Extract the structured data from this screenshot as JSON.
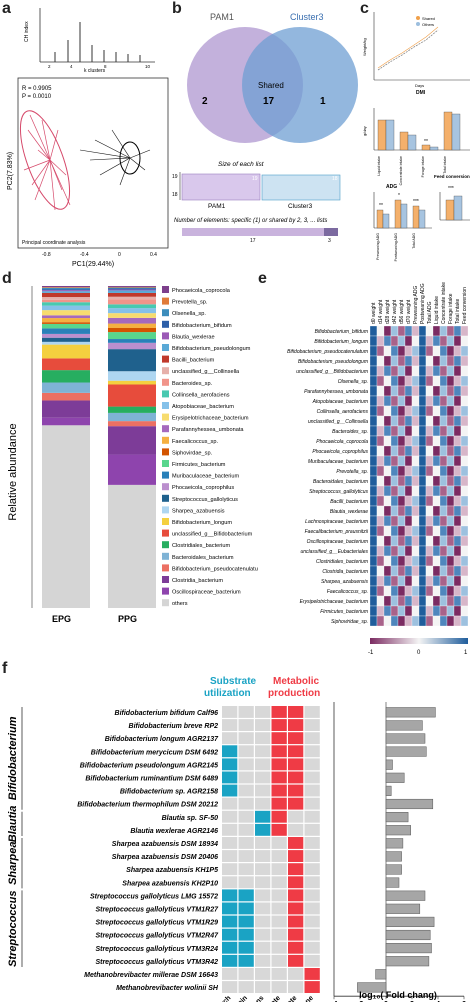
{
  "panels": {
    "a": "a",
    "b": "b",
    "c": "c",
    "d": "d",
    "e": "e",
    "f": "f"
  },
  "panel_a": {
    "inset_ylabel": "CH index",
    "inset_xlabel": "k clusters",
    "inset_ticks": [
      "2",
      "4",
      "6",
      "8",
      "10"
    ],
    "stats": [
      "R = 0.9905",
      "P = 0.0010"
    ],
    "xlabel": "PC1(29.44%)",
    "ylabel": "PC2(7.83%)",
    "xticks": [
      "-0.8",
      "-0.4",
      "0",
      "0.4"
    ],
    "footer": "Principal coordinate analysis"
  },
  "panel_b": {
    "set1": "PAM1",
    "set2": "Cluster3",
    "left_only": "2",
    "shared_label": "Shared",
    "shared": "17",
    "right_only": "1",
    "size_title": "Size of each list",
    "size_axis": [
      "19",
      "18"
    ],
    "size_bar1_value": "19",
    "size_bar2_value": "18",
    "elements_title": "Number of elements: specific (1) or shared by 2, 3, ... lists",
    "elements_values": [
      "17",
      "3"
    ]
  },
  "panel_c": {
    "legend": [
      "Shared",
      "Others"
    ],
    "line_ylabel": "Weight/kg",
    "line_xlabel": "Days",
    "line_sub": "DMI",
    "bar1_categories": [
      "Liquid intake",
      "Concentrate intake",
      "Forage intake",
      "Total intake"
    ],
    "bar1_ylabel": "g/day",
    "bar1_sig": "**",
    "adg_title": "ADG",
    "adg_categories": [
      "Preweaning ADG",
      "Postweaning ADG",
      "Total ADG"
    ],
    "adg_sig": [
      "**",
      "*",
      "***"
    ],
    "feed_title": "Feed conversion",
    "feed_sig": "***"
  },
  "panel_d": {
    "ylabel": "Relative abundance",
    "categories": [
      "EPG",
      "PPG"
    ],
    "legend": [
      "Phocaeicola_coprocola",
      "Prevotella_sp.",
      "Olsenella_sp.",
      "Bifidobacterium_bifidum",
      "Blautia_wexlerae",
      "Bifidobacterium_pseudolongum",
      "Bacilli_bacterium",
      "unclassified_g__Collinsella",
      "Bacteroides_sp.",
      "Collinsella_aerofaciens",
      "Atopobiaceae_bacterium",
      "Erysipelotrichaceae_bacterium",
      "Parafannyhessea_umbonata",
      "Faecalicoccus_sp.",
      "Siphovirdae_sp.",
      "Firmicutes_bacterium",
      "Muribaculaceae_bacterium",
      "Phocaeicola_coprophilus",
      "Streptococcus_gallolyticus",
      "Sharpea_azabuensis",
      "Bifidobacterium_longum",
      "unclassified_g__Bifidobacterium",
      "Clostridiales_bacterium",
      "Bacteroidales_bacterium",
      "Bifidobacterium_pseudocatenulatum",
      "Clostridia_bacterium",
      "Oscillospiraceae_bacterium",
      "others"
    ],
    "colors": [
      "#7d3f8c",
      "#e07b39",
      "#3c8dbc",
      "#2c5fa8",
      "#9b59b6",
      "#5aa9d6",
      "#c0392b",
      "#e6b0aa",
      "#f1948a",
      "#48c9b0",
      "#85c1e9",
      "#f7dc6f",
      "#a569bd",
      "#f5b041",
      "#d35400",
      "#58d68d",
      "#2980b9",
      "#bb8fce",
      "#1f618d",
      "#aed6f1",
      "#f4d03f",
      "#e74c3c",
      "#27ae60",
      "#7fb3d5",
      "#ec7063",
      "#7d3c98",
      "#8e44ad",
      "#d5d5d5"
    ]
  },
  "panel_e": {
    "col_labels": [
      "d0 weight",
      "d14 weight",
      "d28 weight",
      "d42 weight",
      "d56 weight",
      "d70 weight",
      "Preweaning ADG",
      "Postweaning ADG",
      "Total ADG",
      "Liquid intake",
      "Concentrate intake",
      "Forage intake",
      "Total intake",
      "Feed conversion"
    ],
    "row_labels": [
      "Bifidobacterium_bifidum",
      "Bifidobacterium_longum",
      "Bifidobacterium_pseudocatenulatum",
      "Bifidobacterium_pseudolongum",
      "unclassified_g__Bifidobacterium",
      "Olsenella_sp.",
      "Parafannyhessea_umbonata",
      "Atopobiaceae_bacterium",
      "Collinsella_aerofaciens",
      "unclassified_g__Collinsella",
      "Bacteroides_sp.",
      "Phocaeicola_coprocola",
      "Phocaeicola_coprophilus",
      "Muribaculaceae_bacterium",
      "Prevotella_sp.",
      "Bacteroidales_bacterium",
      "Streptococcus_gallolyticus",
      "Bacilli_bacterium",
      "Blautia_wexlerae",
      "Lachnospiraceae_bacterium",
      "Faecalibacterium_prausnitzii",
      "Oscillospiraceae_bacterium",
      "unclassified_g__Eubacteriales",
      "Clostridiales_bacterium",
      "Clostridia_bacterium",
      "Sharpea_azabuensis",
      "Faecalicoccus_sp.",
      "Erysipelotrichaceae_bacterium",
      "Firmicutes_bacterium",
      "Siphoviridae_sp."
    ],
    "scale": [
      "-1",
      "0",
      "1"
    ]
  },
  "panel_f": {
    "header_substrate": "Substrate utilization",
    "header_metabolic": "Metabolic production",
    "groups": [
      "Bifidobacterium",
      "Blautia",
      "Sharpea",
      "Streptococcus"
    ],
    "strains": [
      "Bifidobacterium bifidum Calf96",
      "Bifidobacterium breve RP2",
      "Bifidobacterium longum AGR2137",
      "Bifidobacterium merycicum DSM 6492",
      "Bifidobacterium pseudolongum AGR2145",
      "Bifidobacterium ruminantium DSM 6489",
      "Bifidobacterium sp. AGR2158",
      "Bifidobacterium thermophilum DSM 20212",
      "Blautia sp. SF-50",
      "Blautia wexlerae AGR2146",
      "Sharpea azabuensis DSM 18934",
      "Sharpea azabuensis DSM 20406",
      "Sharpea azabuensis KH1P5",
      "Sharpea azabuensis KH2P10",
      "Streptococcus gallolyticus LMG 15572",
      "Streptococcus gallolyticus VTM1R27",
      "Streptococcus gallolyticus VTM1R29",
      "Streptococcus gallolyticus VTM2R47",
      "Streptococcus gallolyticus VTM3R24",
      "Streptococcus gallolyticus VTM3R42",
      "Methanobrevibacter millerae DSM 16643",
      "Methanobrevibacter wolinii SH"
    ],
    "columns": [
      "Starch",
      "Protein",
      "Acetogens",
      "Acetate",
      "Lactate",
      "Methane"
    ],
    "matrix": [
      [
        0,
        0,
        0,
        1,
        1,
        0
      ],
      [
        0,
        0,
        0,
        1,
        1,
        0
      ],
      [
        0,
        0,
        0,
        1,
        1,
        0
      ],
      [
        1,
        0,
        0,
        1,
        1,
        0
      ],
      [
        1,
        0,
        0,
        1,
        1,
        0
      ],
      [
        1,
        0,
        0,
        1,
        1,
        0
      ],
      [
        1,
        0,
        0,
        1,
        1,
        0
      ],
      [
        0,
        0,
        0,
        1,
        1,
        0
      ],
      [
        0,
        0,
        1,
        1,
        0,
        0
      ],
      [
        0,
        0,
        1,
        1,
        0,
        0
      ],
      [
        0,
        0,
        0,
        0,
        1,
        0
      ],
      [
        0,
        0,
        0,
        0,
        1,
        0
      ],
      [
        0,
        0,
        0,
        0,
        1,
        0
      ],
      [
        0,
        0,
        0,
        0,
        1,
        0
      ],
      [
        1,
        1,
        0,
        0,
        1,
        0
      ],
      [
        1,
        1,
        0,
        0,
        1,
        0
      ],
      [
        1,
        1,
        0,
        0,
        1,
        0
      ],
      [
        1,
        1,
        0,
        0,
        1,
        0
      ],
      [
        1,
        1,
        0,
        0,
        1,
        0
      ],
      [
        1,
        1,
        0,
        0,
        1,
        0
      ],
      [
        0,
        0,
        0,
        0,
        0,
        1
      ],
      [
        0,
        0,
        0,
        0,
        0,
        1
      ]
    ],
    "fold_values": [
      3.8,
      2.8,
      3.0,
      3.1,
      0.5,
      1.4,
      0.4,
      3.6,
      1.7,
      1.9,
      1.3,
      1.2,
      1.2,
      1.0,
      3.0,
      2.6,
      3.7,
      3.4,
      3.5,
      3.3,
      -0.8,
      -2.2
    ],
    "xticks": [
      "-4",
      "-2",
      "0",
      "2",
      "4",
      "6"
    ],
    "xlabel": "log₁₀( Fold chang)",
    "colors": {
      "substrate": "#1aa3c4",
      "metabolic": "#ef3b45",
      "empty": "#d8d8d8",
      "bar": "#a6a6a6"
    }
  }
}
